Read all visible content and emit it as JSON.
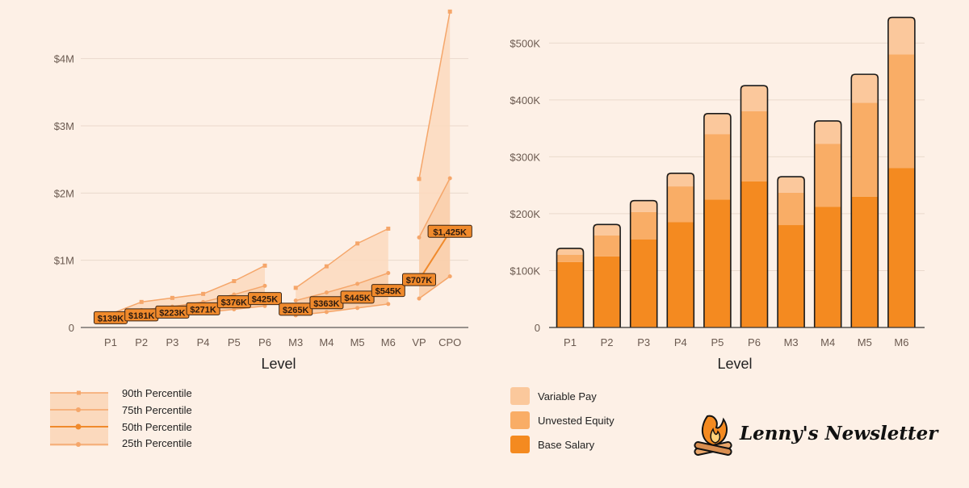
{
  "colors": {
    "background": "#fdf0e6",
    "p90_fill": "#fbd9bd",
    "p75_band": "#f8c9a1",
    "line": "#f5a66a",
    "median_line": "#f08a2c",
    "label_fill": "#f08a2c",
    "variable_pay": "#fbc89c",
    "unvested_equity": "#f9ad66",
    "base_salary": "#f48a20",
    "grid": "#ead9cc"
  },
  "brand": {
    "name": "Lenny's Newsletter",
    "logo_icon": "campfire-icon"
  },
  "chart_data": [
    {
      "type": "area",
      "xlabel": "Level",
      "ylabel": "",
      "categories": [
        "P1",
        "P2",
        "P3",
        "P4",
        "P5",
        "P6",
        "M3",
        "M4",
        "M5",
        "M6",
        "VP",
        "CPO"
      ],
      "groups": [
        [
          0,
          5
        ],
        [
          6,
          9
        ],
        [
          10,
          11
        ]
      ],
      "ylim": [
        0,
        4800000
      ],
      "yticks": [
        0,
        1000000,
        2000000,
        3000000,
        4000000
      ],
      "ytick_labels": [
        "0",
        "$1M",
        "$2M",
        "$3M",
        "$4M"
      ],
      "series": [
        {
          "name": "90th Percentile",
          "values": [
            200000,
            380000,
            440000,
            500000,
            690000,
            920000,
            590000,
            910000,
            1250000,
            1470000,
            2210000,
            4700000
          ]
        },
        {
          "name": "75th Percentile",
          "values": [
            170000,
            260000,
            310000,
            380000,
            490000,
            620000,
            400000,
            520000,
            650000,
            810000,
            1340000,
            2220000
          ]
        },
        {
          "name": "50th Percentile",
          "values": [
            139000,
            181000,
            223000,
            271000,
            376000,
            425000,
            265000,
            363000,
            445000,
            545000,
            707000,
            1425000
          ]
        },
        {
          "name": "25th Percentile",
          "values": [
            110000,
            150000,
            190000,
            220000,
            270000,
            320000,
            180000,
            230000,
            290000,
            350000,
            430000,
            760000
          ]
        }
      ],
      "median_labels": [
        "$139K",
        "$181K",
        "$223K",
        "$271K",
        "$376K",
        "$425K",
        "$265K",
        "$363K",
        "$445K",
        "$545K",
        "$707K",
        "$1,425K"
      ],
      "legend": [
        "90th Percentile",
        "75th Percentile",
        "50th Percentile",
        "25th Percentile"
      ],
      "legend_position": "bottom-left",
      "grid": true
    },
    {
      "type": "bar",
      "stacked": true,
      "xlabel": "Level",
      "ylabel": "",
      "categories": [
        "P1",
        "P2",
        "P3",
        "P4",
        "P5",
        "P6",
        "M3",
        "M4",
        "M5",
        "M6"
      ],
      "ylim": [
        0,
        560000
      ],
      "yticks": [
        0,
        100000,
        200000,
        300000,
        400000,
        500000
      ],
      "ytick_labels": [
        "0",
        "$100K",
        "$200K",
        "$300K",
        "$400K",
        "$500K"
      ],
      "series": [
        {
          "name": "Base Salary",
          "values": [
            115000,
            125000,
            155000,
            185000,
            225000,
            257000,
            180000,
            212000,
            230000,
            280000
          ]
        },
        {
          "name": "Unvested Equity",
          "values": [
            13000,
            37000,
            48000,
            63000,
            115000,
            123000,
            57000,
            111000,
            165000,
            200000
          ]
        },
        {
          "name": "Variable Pay",
          "values": [
            11000,
            19000,
            20000,
            23000,
            36000,
            45000,
            28000,
            40000,
            50000,
            65000
          ]
        }
      ],
      "legend": [
        "Variable Pay",
        "Unvested Equity",
        "Base Salary"
      ],
      "legend_position": "bottom",
      "grid": true
    }
  ]
}
